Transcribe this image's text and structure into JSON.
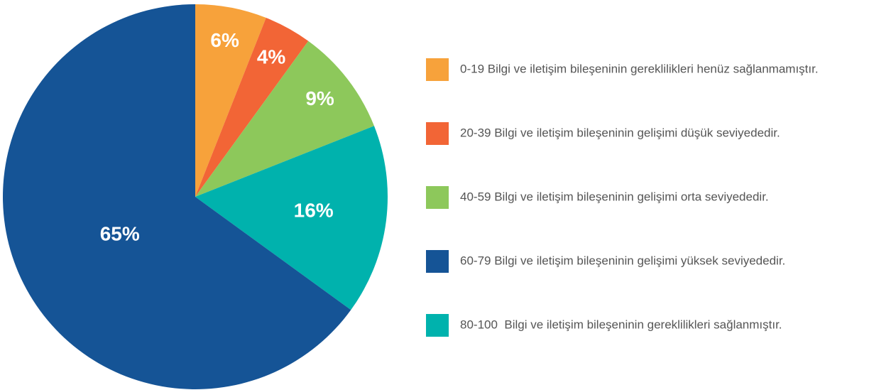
{
  "chart_data": {
    "type": "pie",
    "categories": [
      "0-19 Bilgi ve iletişim bileşeninin gereklilikleri henüz sağlanmamıştır.",
      "20-39 Bilgi ve iletişim bileşeninin gelişimi düşük seviyededir.",
      "40-59 Bilgi ve iletişim bileşeninin gelişimi orta seviyededir.",
      "80-100  Bilgi ve iletişim bileşeninin gereklilikleri sağlanmıştır.",
      "60-79 Bilgi ve iletişim bileşeninin gelişimi yüksek seviyededir."
    ],
    "values": [
      6,
      4,
      9,
      16,
      65
    ],
    "value_labels": [
      "6%",
      "4%",
      "9%",
      "16%",
      "65%"
    ],
    "colors": [
      "#f7a23b",
      "#f26536",
      "#8dc85b",
      "#00b2ad",
      "#155496"
    ],
    "legend": "right"
  }
}
